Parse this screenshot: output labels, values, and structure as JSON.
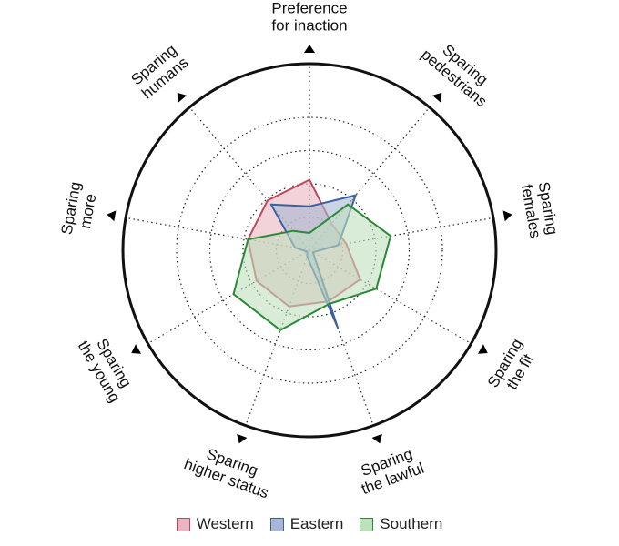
{
  "chart_data": {
    "type": "radar",
    "axes": [
      {
        "lines": [
          "Preference",
          "for inaction"
        ]
      },
      {
        "lines": [
          "Sparing",
          "pedestrians"
        ]
      },
      {
        "lines": [
          "Sparing",
          "females"
        ]
      },
      {
        "lines": [
          "Sparing",
          "the fit"
        ]
      },
      {
        "lines": [
          "Sparing",
          "the lawful"
        ]
      },
      {
        "lines": [
          "Sparing",
          "higher status"
        ]
      },
      {
        "lines": [
          "Sparing",
          "the young"
        ]
      },
      {
        "lines": [
          "Sparing",
          "more"
        ]
      },
      {
        "lines": [
          "Sparing",
          "humans"
        ]
      }
    ],
    "range": [
      0,
      1
    ],
    "grid_rings": 4,
    "series": [
      {
        "name": "Western",
        "fill": "#e8b5c0",
        "stroke": "#c0485c",
        "values": [
          0.53,
          0.26,
          0.28,
          0.44,
          0.41,
          0.45,
          0.46,
          0.47,
          0.49
        ]
      },
      {
        "name": "Eastern",
        "fill": "#a8b8d4",
        "stroke": "#3a62a0",
        "values": [
          0.33,
          0.54,
          0.22,
          0.03,
          0.62,
          0.05,
          0.02,
          0.11,
          0.45
        ]
      },
      {
        "name": "Southern",
        "fill": "#bfe0bc",
        "stroke": "#2a8a3a",
        "values": [
          0.13,
          0.45,
          0.62,
          0.58,
          0.43,
          0.64,
          0.66,
          0.47,
          0.19
        ]
      }
    ],
    "legend_position": "bottom"
  }
}
